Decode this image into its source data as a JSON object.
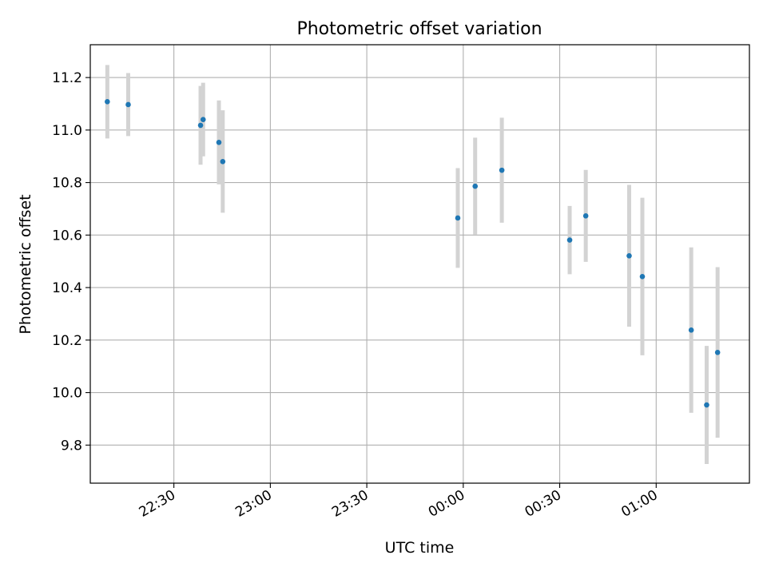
{
  "chart_data": {
    "type": "scatter",
    "title": "Photometric offset variation",
    "xlabel": "UTC time",
    "ylabel": "Photometric offset",
    "x_ticks": [
      {
        "minutes": 30,
        "label": "22:30"
      },
      {
        "minutes": 60,
        "label": "23:00"
      },
      {
        "minutes": 90,
        "label": "23:30"
      },
      {
        "minutes": 120,
        "label": "00:00"
      },
      {
        "minutes": 150,
        "label": "00:30"
      },
      {
        "minutes": 180,
        "label": "01:00"
      }
    ],
    "y_ticks": [
      {
        "value": 9.8,
        "label": "9.8"
      },
      {
        "value": 10.0,
        "label": "10.0"
      },
      {
        "value": 10.2,
        "label": "10.2"
      },
      {
        "value": 10.4,
        "label": "10.4"
      },
      {
        "value": 10.6,
        "label": "10.6"
      },
      {
        "value": 10.8,
        "label": "10.8"
      },
      {
        "value": 11.0,
        "label": "11.0"
      },
      {
        "value": 11.2,
        "label": "11.2"
      }
    ],
    "xlim_minutes_after_2200": [
      4,
      209
    ],
    "ylim": [
      9.655,
      11.325
    ],
    "grid": true,
    "point_color": "#1f77b4",
    "errorbar_color": "#d3d3d3",
    "points": [
      {
        "time": "22:09",
        "minutes": 9.3,
        "value": 11.108,
        "error": 0.14
      },
      {
        "time": "22:15",
        "minutes": 15.8,
        "value": 11.097,
        "error": 0.12
      },
      {
        "time": "22:38",
        "minutes": 38.3,
        "value": 11.018,
        "error": 0.15
      },
      {
        "time": "22:39",
        "minutes": 39.1,
        "value": 11.04,
        "error": 0.14
      },
      {
        "time": "22:44",
        "minutes": 44.0,
        "value": 10.953,
        "error": 0.16
      },
      {
        "time": "22:45",
        "minutes": 45.2,
        "value": 10.88,
        "error": 0.195
      },
      {
        "time": "23:58",
        "minutes": 118.3,
        "value": 10.665,
        "error": 0.19
      },
      {
        "time": "00:03",
        "minutes": 123.7,
        "value": 10.786,
        "error": 0.185
      },
      {
        "time": "00:12",
        "minutes": 132.0,
        "value": 10.847,
        "error": 0.2
      },
      {
        "time": "00:33",
        "minutes": 153.1,
        "value": 10.581,
        "error": 0.13
      },
      {
        "time": "00:38",
        "minutes": 158.1,
        "value": 10.673,
        "error": 0.175
      },
      {
        "time": "00:51",
        "minutes": 171.6,
        "value": 10.521,
        "error": 0.27
      },
      {
        "time": "00:55",
        "minutes": 175.7,
        "value": 10.442,
        "error": 0.3
      },
      {
        "time": "01:11",
        "minutes": 190.9,
        "value": 10.238,
        "error": 0.315
      },
      {
        "time": "01:16",
        "minutes": 195.7,
        "value": 9.953,
        "error": 0.225
      },
      {
        "time": "01:19",
        "minutes": 199.1,
        "value": 10.153,
        "error": 0.325
      }
    ]
  }
}
